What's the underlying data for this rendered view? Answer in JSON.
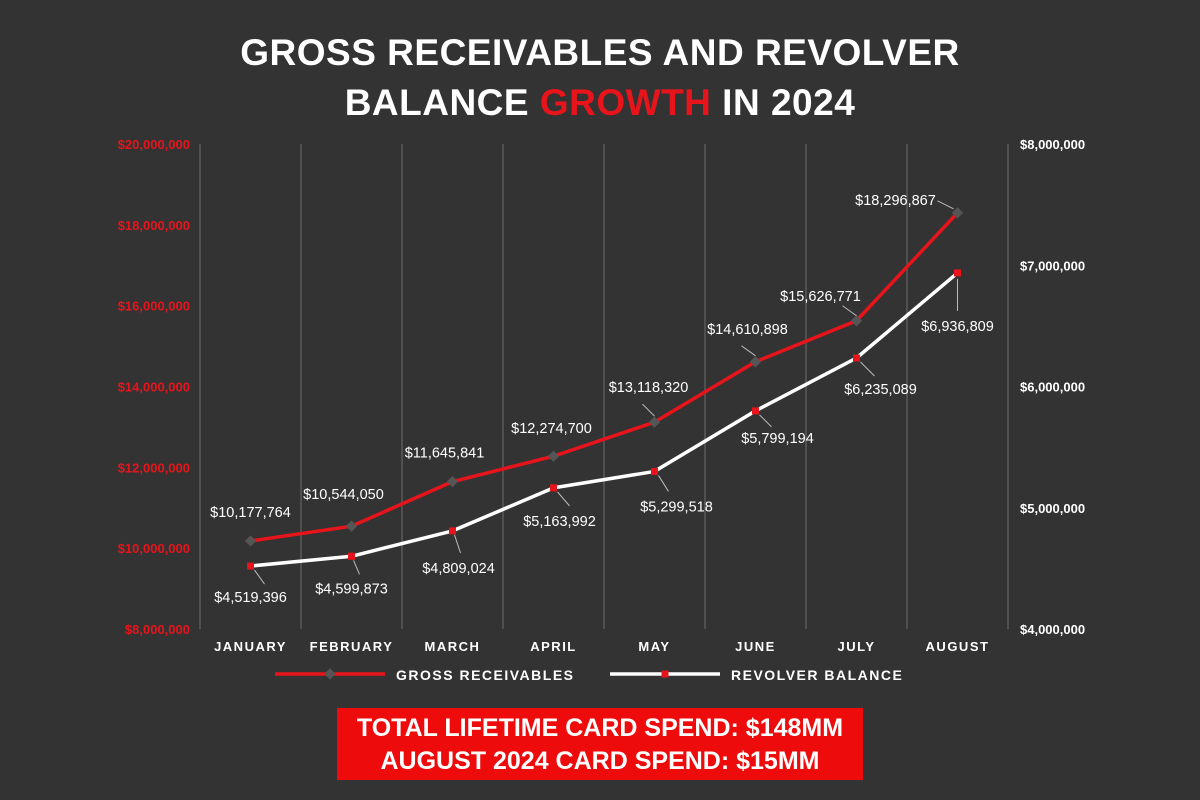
{
  "title": {
    "line1": "GROSS RECEIVABLES AND REVOLVER",
    "line2_before": "BALANCE ",
    "line2_accent": "GROWTH",
    "line2_after": " IN 2024"
  },
  "banner": {
    "line1": "TOTAL LIFETIME CARD SPEND: $148MM",
    "line2": "AUGUST 2024 CARD SPEND: $15MM"
  },
  "colors": {
    "background": "#333333",
    "accent_red": "#e8141b",
    "white": "#ffffff",
    "grid": "#6e6e6e"
  },
  "chart_data": {
    "type": "line",
    "categories": [
      "JANUARY",
      "FEBRUARY",
      "MARCH",
      "APRIL",
      "MAY",
      "JUNE",
      "JULY",
      "AUGUST"
    ],
    "y_left": {
      "ylim": [
        8000000,
        20000000
      ],
      "ticks": [
        8000000,
        10000000,
        12000000,
        14000000,
        16000000,
        18000000,
        20000000
      ],
      "tick_labels": [
        "$8,000,000",
        "$10,000,000",
        "$12,000,000",
        "$14,000,000",
        "$16,000,000",
        "$18,000,000",
        "$20,000,000"
      ]
    },
    "y_right": {
      "ylim": [
        4000000,
        8000000
      ],
      "ticks": [
        4000000,
        5000000,
        6000000,
        7000000,
        8000000
      ],
      "tick_labels": [
        "$4,000,000",
        "$5,000,000",
        "$6,000,000",
        "$7,000,000",
        "$8,000,000"
      ]
    },
    "grid": "vertical",
    "legend_position": "bottom",
    "series": [
      {
        "name": "GROSS RECEIVABLES",
        "axis": "left",
        "color": "#e8141b",
        "marker": "diamond",
        "values": [
          10177764,
          10544050,
          11645841,
          12274700,
          13118320,
          14610898,
          15626771,
          18296867
        ],
        "labels": [
          "$10,177,764",
          "$10,544,050",
          "$11,645,841",
          "$12,274,700",
          "$13,118,320",
          "$14,610,898",
          "$15,626,771",
          "$18,296,867"
        ]
      },
      {
        "name": "REVOLVER BALANCE",
        "axis": "right",
        "color": "#ffffff",
        "marker": "square",
        "values": [
          4519396,
          4599873,
          4809024,
          5163992,
          5299518,
          5799194,
          6235089,
          6936809
        ],
        "labels": [
          "$4,519,396",
          "$4,599,873",
          "$4,809,024",
          "$5,163,992",
          "$5,299,518",
          "$5,799,194",
          "$6,235,089",
          "$6,936,809"
        ]
      }
    ]
  }
}
